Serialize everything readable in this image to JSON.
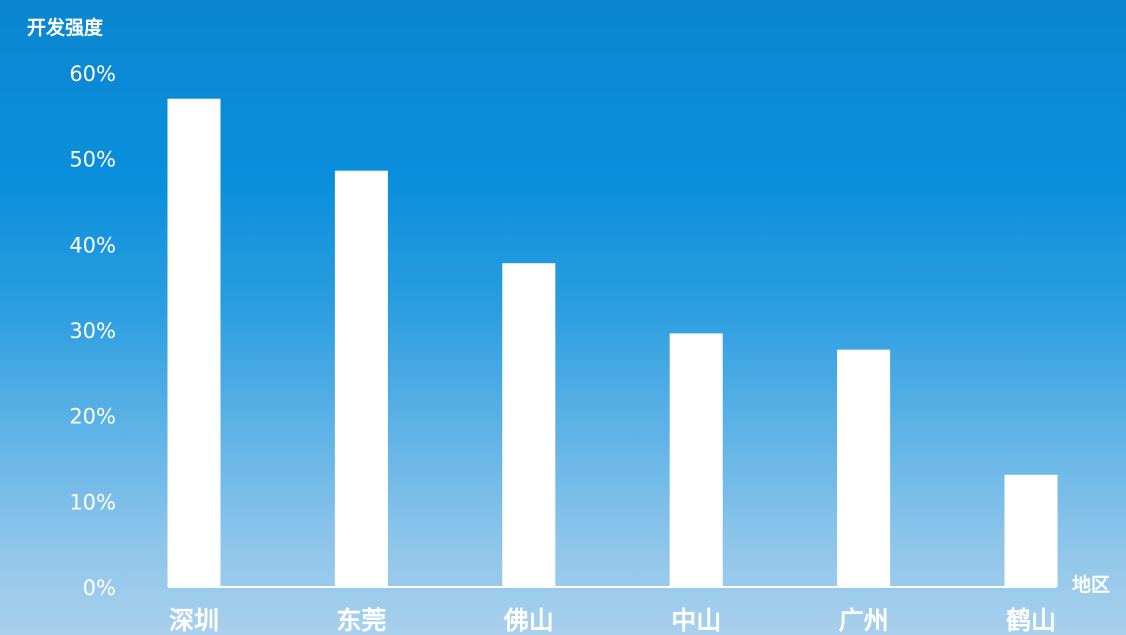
{
  "chart_data": {
    "type": "bar",
    "ylabel": "开发强度",
    "xlabel": "地区",
    "categories": [
      "深圳",
      "东莞",
      "佛山",
      "中山",
      "广州",
      "鹤山"
    ],
    "values": [
      57,
      48.6,
      37.8,
      29.6,
      27.7,
      13.1
    ],
    "yticks": [
      "0%",
      "10%",
      "20%",
      "30%",
      "40%",
      "50%",
      "60%"
    ],
    "ylim": [
      0,
      60
    ],
    "grid": false,
    "legend": "none",
    "bar_color": "#ffffff"
  }
}
